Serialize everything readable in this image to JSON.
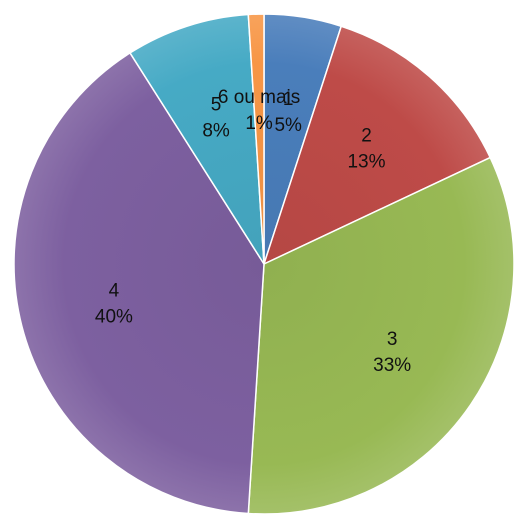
{
  "chart_data": {
    "type": "pie",
    "title": "",
    "start_angle_deg": 0,
    "direction": "clockwise",
    "slices": [
      {
        "category": "1",
        "value": 5,
        "label": "5%",
        "color": "#4a7ebb"
      },
      {
        "category": "2",
        "value": 13,
        "label": "13%",
        "color": "#be4b48"
      },
      {
        "category": "3",
        "value": 33,
        "label": "33%",
        "color": "#98b954"
      },
      {
        "category": "4",
        "value": 40,
        "label": "40%",
        "color": "#7d60a0"
      },
      {
        "category": "5",
        "value": 8,
        "label": "8%",
        "color": "#46aac5"
      },
      {
        "category": "6 ou mais",
        "value": 1,
        "label": "1%",
        "color": "#f79646"
      }
    ]
  }
}
